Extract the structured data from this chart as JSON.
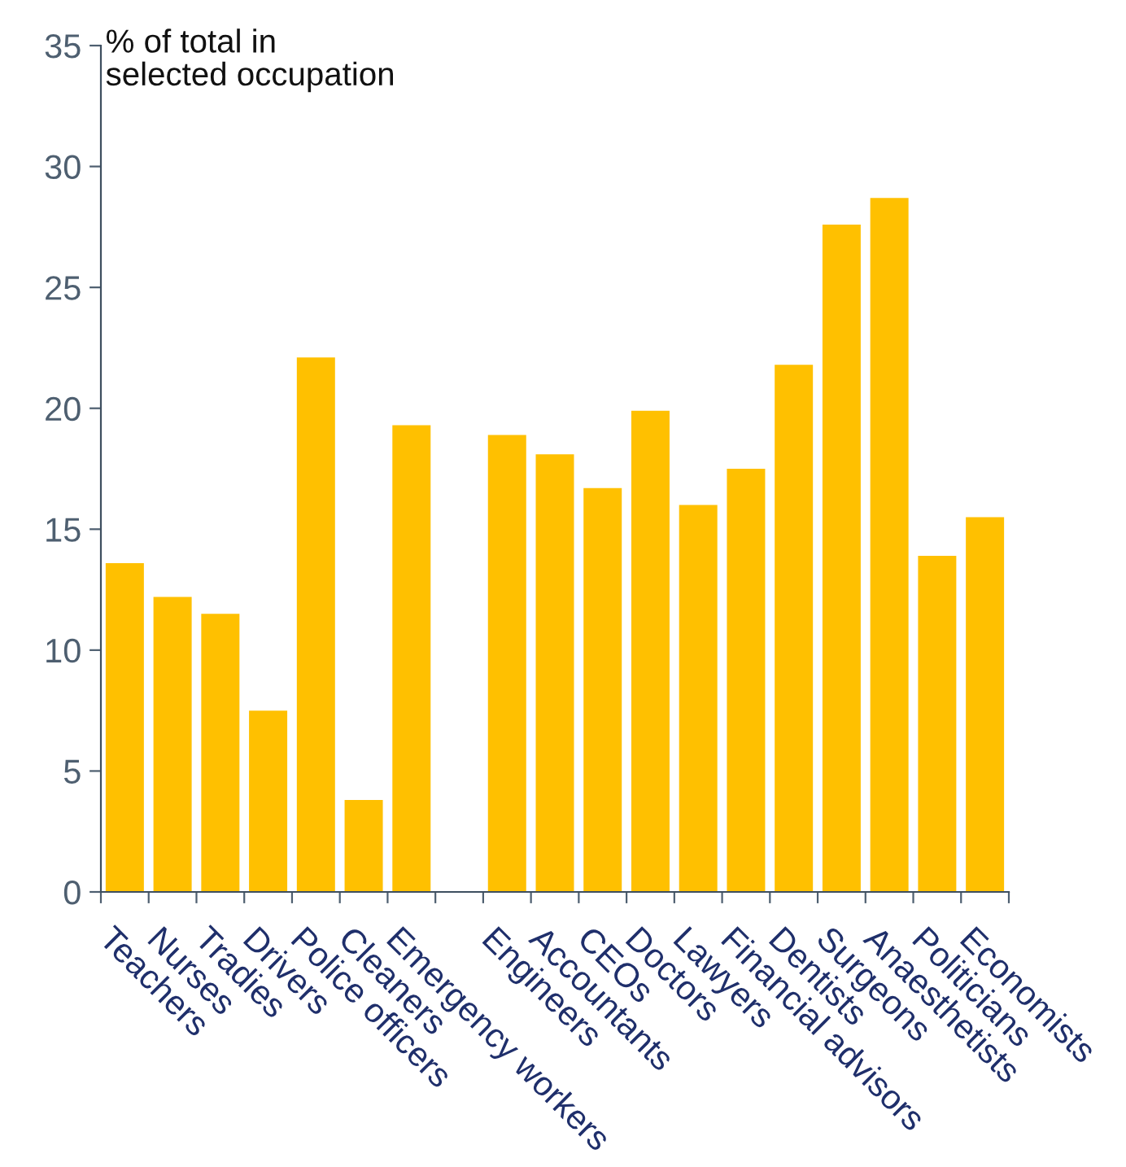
{
  "chart_data": {
    "type": "bar",
    "ylabel": "% of total in\nselected occupation",
    "categories": [
      "Teachers",
      "Nurses",
      "Tradies",
      "Drivers",
      "Police officers",
      "Cleaners",
      "Emergency workers",
      null,
      "Engineers",
      "Accountants",
      "CEOs",
      "Doctors",
      "Lawyers",
      "Financial advisors",
      "Dentists",
      "Surgeons",
      "Anaesthetists",
      "Politicians",
      "Economists"
    ],
    "values": [
      13.6,
      12.2,
      11.5,
      7.5,
      22.1,
      3.8,
      19.3,
      null,
      18.9,
      18.1,
      16.7,
      19.9,
      16.0,
      17.5,
      21.8,
      27.6,
      28.7,
      13.9,
      15.5
    ],
    "color": "#ffc000",
    "ylim": [
      0,
      35
    ],
    "yticks": [
      0,
      5,
      10,
      15,
      20,
      25,
      30,
      35
    ],
    "grid": false,
    "legend": false
  }
}
